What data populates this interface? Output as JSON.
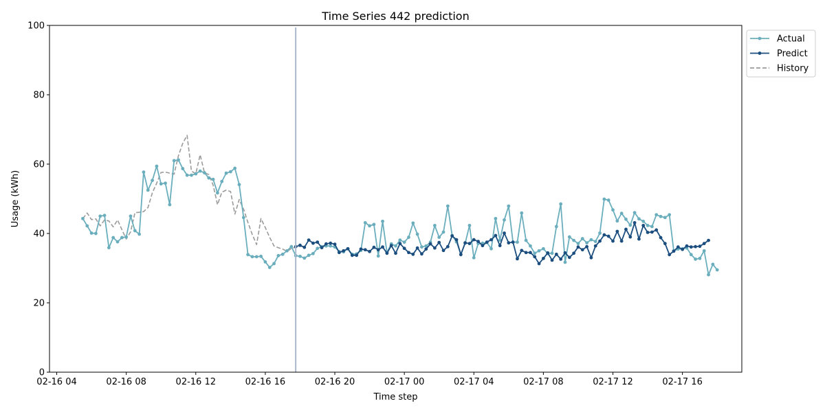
{
  "chart_data": {
    "type": "line",
    "title": "Time Series 442 prediction",
    "xlabel": "Time step",
    "ylabel": "Usage (kWh)",
    "ylim": [
      0,
      100
    ],
    "yticks": [
      "0",
      "20",
      "40",
      "60",
      "80",
      "100"
    ],
    "xlim": [
      "02-16 03:35",
      "02-17 19:25"
    ],
    "xticks": [
      {
        "label": "02-16 04",
        "t": "02-16 04:00"
      },
      {
        "label": "02-16 08",
        "t": "02-16 08:00"
      },
      {
        "label": "02-16 12",
        "t": "02-16 12:00"
      },
      {
        "label": "02-16 16",
        "t": "02-16 16:00"
      },
      {
        "label": "02-16 20",
        "t": "02-16 20:00"
      },
      {
        "label": "02-17 00",
        "t": "02-17 00:00"
      },
      {
        "label": "02-17 04",
        "t": "02-17 04:00"
      },
      {
        "label": "02-17 08",
        "t": "02-17 08:00"
      },
      {
        "label": "02-17 12",
        "t": "02-17 12:00"
      },
      {
        "label": "02-17 16",
        "t": "02-17 16:00"
      }
    ],
    "step_minutes": 15,
    "vline": "02-16 17:45",
    "grid": false,
    "legend_position": "outside-top-right",
    "series": [
      {
        "name": "Actual",
        "color": "#6aaebd",
        "marker": "circle",
        "linestyle": "solid",
        "start": "02-16 05:30",
        "values": [
          44.3,
          42.2,
          40.1,
          40.0,
          45.0,
          45.2,
          35.9,
          38.8,
          37.6,
          38.8,
          39.0,
          45.0,
          40.8,
          39.8,
          57.7,
          52.5,
          55.3,
          59.4,
          54.3,
          54.5,
          48.3,
          61.0,
          61.2,
          58.7,
          56.8,
          56.8,
          57.2,
          58.0,
          57.5,
          56.0,
          55.6,
          51.7,
          55.0,
          57.4,
          57.8,
          58.8,
          54.1,
          44.6,
          33.9,
          33.3,
          33.3,
          33.4,
          31.8,
          30.2,
          31.3,
          33.6,
          34.0,
          35.0,
          36.2,
          33.6,
          33.4,
          32.9,
          33.7,
          34.2,
          35.7,
          36.2,
          36.4,
          36.4,
          36.1,
          34.8,
          34.7,
          35.6,
          34.0,
          34.1,
          35.1,
          43.1,
          42.2,
          42.6,
          33.5,
          43.5,
          34.5,
          37.0,
          36.4,
          38.1,
          37.5,
          38.9,
          43.0,
          39.8,
          36.1,
          36.4,
          37.5,
          42.3,
          38.9,
          40.4,
          47.9,
          39.4,
          37.6,
          34.0,
          37.2,
          42.3,
          33.0,
          37.1,
          37.2,
          37.4,
          35.6,
          44.3,
          38.1,
          43.9,
          47.9,
          37.5,
          37.5,
          45.9,
          38.0,
          36.4,
          34.3,
          35.0,
          35.6,
          34.2,
          34.3,
          42.0,
          48.5,
          31.7,
          39.0,
          38.0,
          37.1,
          38.5,
          37.3,
          38.2,
          37.7,
          40.1,
          49.9,
          49.6,
          46.8,
          43.6,
          45.8,
          44.1,
          42.4,
          46.0,
          44.2,
          43.5,
          42.3,
          42.0,
          45.4,
          44.9,
          44.6,
          45.4,
          35.0,
          35.5,
          35.6,
          35.8,
          33.9,
          32.6,
          32.8,
          35.0,
          28.1,
          31.1,
          29.5
        ]
      },
      {
        "name": "Predict",
        "color": "#1b4d7e",
        "marker": "circle",
        "linestyle": "solid",
        "start": "02-16 17:45",
        "values": [
          36.2,
          36.6,
          36.0,
          38.1,
          37.2,
          37.5,
          35.9,
          37.0,
          37.2,
          36.9,
          34.5,
          35.0,
          35.6,
          33.7,
          33.7,
          35.5,
          35.3,
          34.8,
          36.0,
          35.3,
          36.1,
          34.3,
          36.5,
          34.3,
          37.1,
          35.7,
          34.5,
          34.0,
          35.8,
          34.1,
          35.5,
          37.0,
          35.8,
          37.4,
          35.1,
          36.2,
          39.3,
          38.2,
          33.9,
          37.3,
          37.1,
          38.2,
          37.7,
          36.5,
          37.5,
          38.2,
          39.4,
          36.5,
          40.1,
          37.3,
          37.5,
          32.7,
          35.1,
          34.5,
          34.5,
          33.3,
          31.3,
          32.8,
          34.4,
          32.3,
          34.0,
          32.6,
          34.4,
          33.1,
          34.3,
          36.1,
          35.3,
          36.2,
          33.0,
          36.4,
          37.8,
          39.6,
          39.2,
          37.8,
          40.6,
          37.8,
          41.2,
          39.0,
          43.1,
          38.4,
          42.3,
          40.3,
          40.4,
          41.0,
          38.8,
          37.1,
          33.9,
          34.9,
          36.1,
          35.4,
          36.4,
          36.1,
          36.2,
          36.3,
          37.1,
          38.0
        ]
      },
      {
        "name": "History",
        "color": "#9a9a9a",
        "marker": "none",
        "linestyle": "dashed",
        "start": "02-16 05:30",
        "values": [
          44.3,
          45.9,
          44.0,
          44.2,
          42.2,
          43.9,
          43.6,
          41.9,
          43.9,
          41.1,
          38.4,
          40.5,
          46.0,
          46.1,
          46.3,
          47.5,
          51.7,
          54.5,
          57.6,
          57.7,
          57.4,
          57.1,
          62.4,
          66.0,
          68.3,
          58.0,
          57.2,
          62.7,
          57.5,
          57.0,
          53.9,
          48.3,
          51.9,
          52.5,
          52.1,
          45.6,
          49.8,
          47.0,
          43.2,
          39.7,
          36.8,
          44.3,
          41.7,
          38.9,
          36.4,
          35.9,
          35.5,
          34.8,
          35.7,
          36.0,
          36.3,
          36.2
        ]
      }
    ]
  }
}
